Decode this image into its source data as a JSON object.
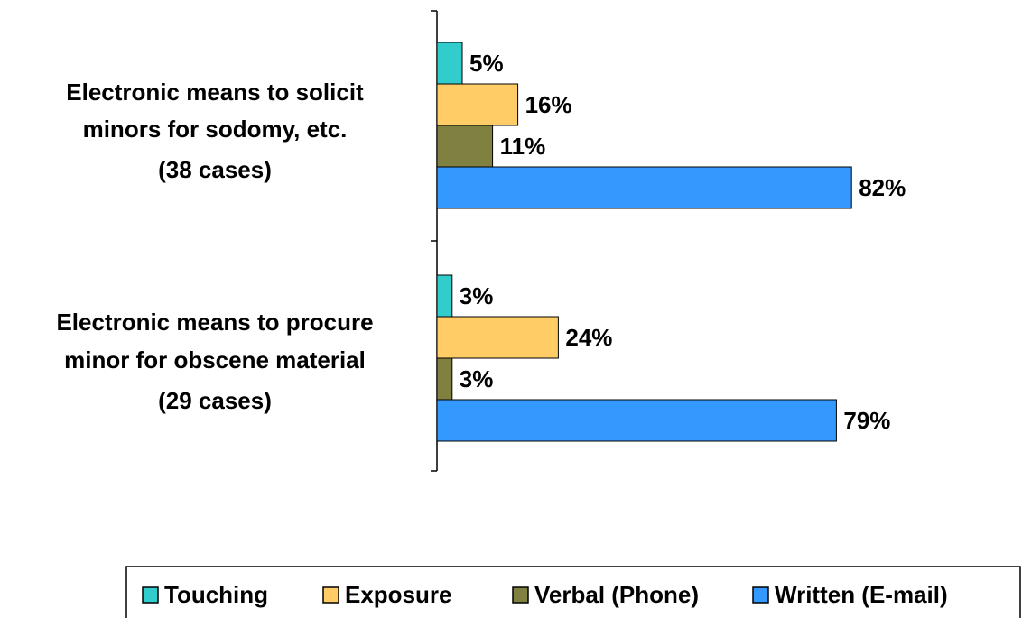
{
  "chart_data": {
    "type": "bar",
    "orientation": "horizontal",
    "categories": [
      [
        "Electronic means to solicit",
        "minors for sodomy, etc.",
        "(38 cases)"
      ],
      [
        "Electronic means to procure",
        "minor for obscene material",
        "(29 cases)"
      ]
    ],
    "series": [
      {
        "name": "Touching",
        "color": "#33cccc",
        "values": [
          5,
          3
        ],
        "value_labels": [
          "5%",
          "3%"
        ]
      },
      {
        "name": "Exposure",
        "color": "#ffcc66",
        "values": [
          16,
          24
        ],
        "value_labels": [
          "16%",
          "24%"
        ]
      },
      {
        "name": "Verbal (Phone)",
        "color": "#808040",
        "values": [
          11,
          3
        ],
        "value_labels": [
          "11%",
          "3%"
        ]
      },
      {
        "name": "Written (E-mail)",
        "color": "#3399ff",
        "values": [
          82,
          79
        ],
        "value_labels": [
          "82%",
          "79%"
        ]
      }
    ],
    "legend": "bottom"
  }
}
